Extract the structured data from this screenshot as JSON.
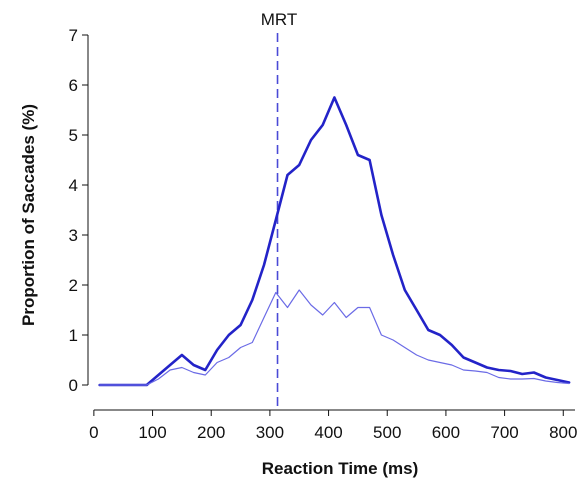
{
  "chart_data": {
    "type": "line",
    "title": "",
    "xlabel": "Reaction Time (ms)",
    "ylabel": "Proportion of Saccades (%)",
    "xlim": [
      -10,
      820
    ],
    "ylim": [
      -0.5,
      7
    ],
    "xticks": [
      0,
      100,
      200,
      300,
      400,
      500,
      600,
      700,
      800
    ],
    "yticks": [
      0,
      1,
      2,
      3,
      4,
      5,
      6,
      7
    ],
    "grid": false,
    "legend": "none",
    "reference_line": {
      "label": "MRT",
      "x": 313,
      "color": "#4a4ad6"
    },
    "series": [
      {
        "color": "#2323c8",
        "width": "thick",
        "x": [
          10,
          30,
          50,
          70,
          90,
          110,
          130,
          150,
          170,
          190,
          210,
          230,
          250,
          270,
          290,
          310,
          330,
          350,
          370,
          390,
          410,
          430,
          450,
          470,
          490,
          510,
          530,
          550,
          570,
          590,
          610,
          630,
          650,
          670,
          690,
          710,
          730,
          750,
          770,
          790,
          810
        ],
        "values": [
          0,
          0,
          0,
          0,
          0,
          0.2,
          0.4,
          0.6,
          0.4,
          0.3,
          0.7,
          1.0,
          1.2,
          1.7,
          2.4,
          3.3,
          4.2,
          4.4,
          4.9,
          5.2,
          5.75,
          5.2,
          4.6,
          4.5,
          3.4,
          2.6,
          1.9,
          1.5,
          1.1,
          1.0,
          0.8,
          0.55,
          0.45,
          0.35,
          0.3,
          0.28,
          0.22,
          0.25,
          0.15,
          0.1,
          0.05
        ]
      },
      {
        "color": "#6b6be6",
        "width": "thin",
        "x": [
          10,
          30,
          50,
          70,
          90,
          110,
          130,
          150,
          170,
          190,
          210,
          230,
          250,
          270,
          290,
          310,
          330,
          350,
          370,
          390,
          410,
          430,
          450,
          470,
          490,
          510,
          530,
          550,
          570,
          590,
          610,
          630,
          650,
          670,
          690,
          710,
          730,
          750,
          770,
          790,
          810
        ],
        "values": [
          0,
          0,
          0,
          0,
          0,
          0.12,
          0.3,
          0.35,
          0.25,
          0.2,
          0.45,
          0.55,
          0.75,
          0.85,
          1.35,
          1.85,
          1.55,
          1.9,
          1.6,
          1.4,
          1.65,
          1.35,
          1.55,
          1.55,
          1.0,
          0.9,
          0.75,
          0.6,
          0.5,
          0.45,
          0.4,
          0.3,
          0.28,
          0.25,
          0.15,
          0.12,
          0.12,
          0.13,
          0.08,
          0.05,
          0.03
        ]
      }
    ]
  }
}
